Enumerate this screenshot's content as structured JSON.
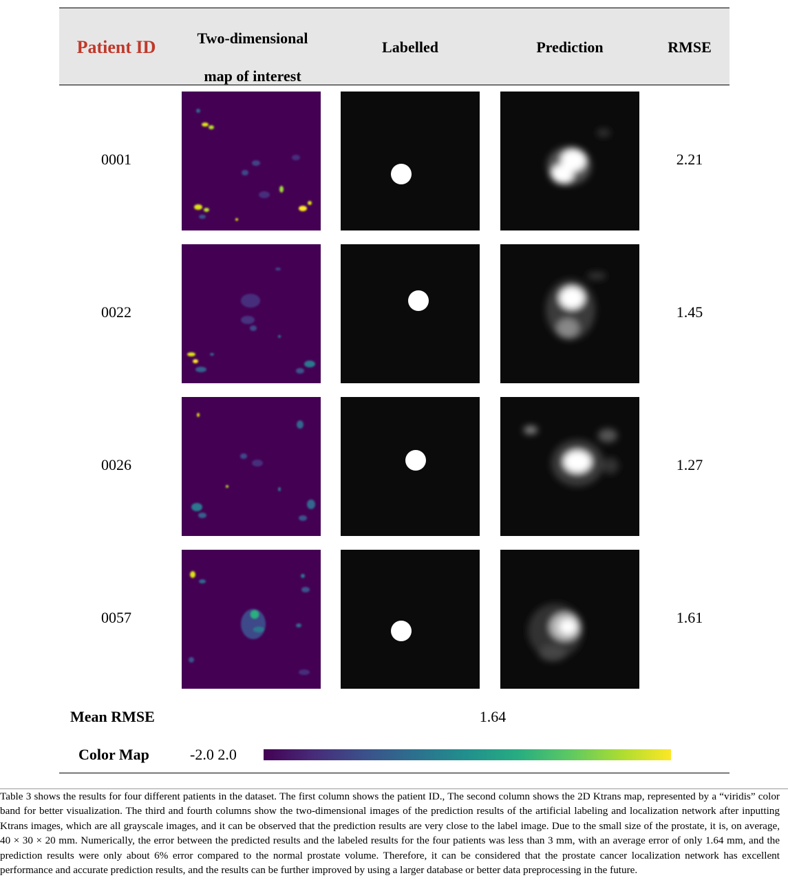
{
  "table": {
    "headers": {
      "patient_id": "Patient ID",
      "map_line1": "Two-dimensional",
      "map_line2": "map of interest",
      "labelled": "Labelled",
      "prediction": "Prediction",
      "rmse": "RMSE"
    },
    "rows": [
      {
        "patient_id": "0001",
        "rmse": "2.21"
      },
      {
        "patient_id": "0022",
        "rmse": "1.45"
      },
      {
        "patient_id": "0026",
        "rmse": "1.27"
      },
      {
        "patient_id": "0057",
        "rmse": "1.61"
      }
    ],
    "mean_label": "Mean RMSE",
    "mean_value": "1.64",
    "color_map_label": "Color Map",
    "color_map_range": "-2.0 2.0",
    "colors": {
      "viridis_start": "#440154",
      "viridis_end": "#fde725",
      "patient_id_header": "#c0392b"
    }
  },
  "caption": "Table 3 shows the results for four different patients in the dataset. The first column shows the patient ID., The second column shows the 2D Ktrans map, represented by a “viridis” color band for better visualization. The third and fourth columns show the two-dimensional images of the prediction results of the artificial labeling and localization network after inputting Ktrans images, which are all grayscale images, and it can be observed that the prediction results are very close to the label image. Due to the small size of the prostate, it is, on average, 40 × 30 × 20 mm. Numerically, the error between the predicted results and the labeled results for the four patients was less than 3 mm, with an average error of only 1.64 mm, and the prediction results were only about 6% error compared to the normal prostate volume. Therefore, it can be considered that the prostate cancer localization network has excellent performance and accurate prediction results, and the results can be further improved by using a larger database or better data preprocessing in the future."
}
